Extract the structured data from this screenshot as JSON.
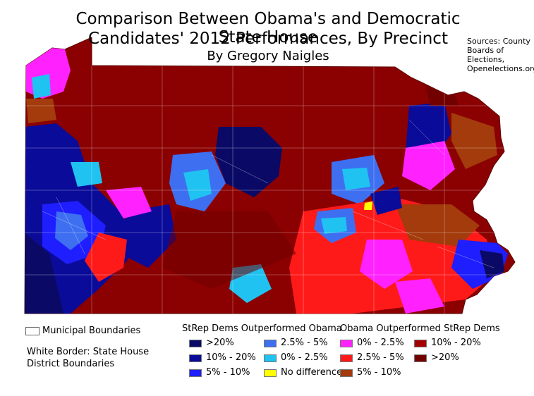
{
  "title_line1": "Comparison Between Obama's and Democratic State House",
  "title_line2": "Candidates' 2012 Performances, By Precinct",
  "byline": "By Gregory Naigles",
  "sources": [
    "Sources: County",
    "Boards of",
    "Elections,",
    "Openelections.org"
  ],
  "legend": {
    "municipal_label": "Municipal Boundaries",
    "white_border_line1": "White Border: State House",
    "white_border_line2": "District Boundaries",
    "heading_left": "StRep Dems Outperformed Obama",
    "heading_right": "Obama Outperformed StRep Dems",
    "items": [
      {
        "label": ">20%",
        "color": "#0a0a66"
      },
      {
        "label": "10% - 20%",
        "color": "#0b0b99"
      },
      {
        "label": "5% - 10%",
        "color": "#1e1eff"
      },
      {
        "label": "2.5% - 5%",
        "color": "#3d6ff0"
      },
      {
        "label": "0% - 2.5%",
        "color": "#1fc2f0"
      },
      {
        "label": "No difference",
        "color": "#ffff00"
      },
      {
        "label": "0% - 2.5%",
        "color": "#ff22ff"
      },
      {
        "label": "2.5% - 5%",
        "color": "#ff1a1a"
      },
      {
        "label": "5% - 10%",
        "color": "#a33b0c"
      },
      {
        "label": "10% - 20%",
        "color": "#a30000"
      },
      {
        "label": ">20%",
        "color": "#730000"
      }
    ]
  },
  "colors": {
    "base": "#8b0000",
    "municipal_border": "#ffffff"
  }
}
